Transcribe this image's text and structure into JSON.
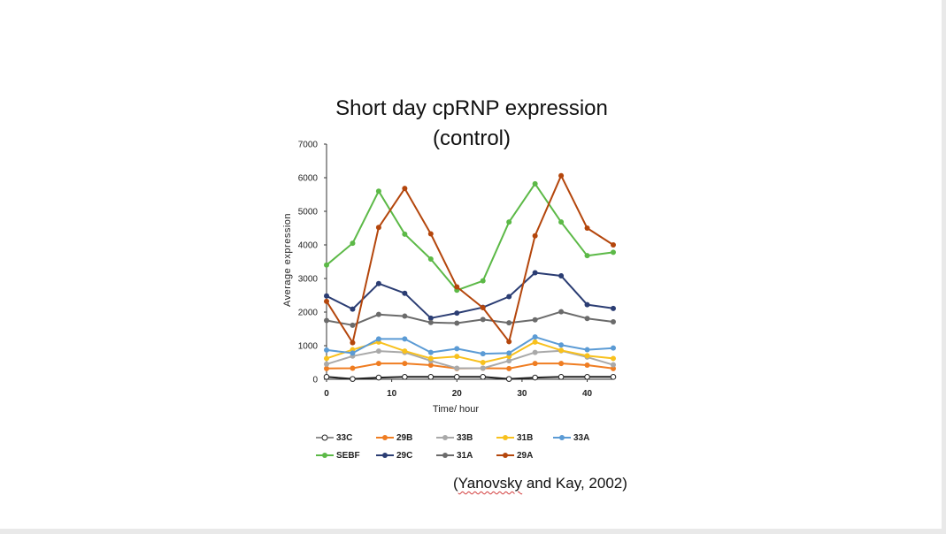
{
  "chart_data": {
    "type": "line",
    "title_line1": "Short day cpRNP expression",
    "title_line2": "(control)",
    "xlabel": "Time/ hour",
    "ylabel": "Average  expression",
    "xlim": [
      0,
      44
    ],
    "ylim": [
      0,
      7000
    ],
    "x_ticks": [
      "0",
      "10",
      "20",
      "30",
      "40"
    ],
    "y_ticks": [
      "0",
      "1000",
      "2000",
      "3000",
      "4000",
      "5000",
      "6000",
      "7000"
    ],
    "x": [
      0,
      4,
      8,
      12,
      16,
      20,
      24,
      28,
      32,
      36,
      40,
      44
    ],
    "series": [
      {
        "name": "33C",
        "color": "#222222",
        "marker": "open",
        "values": [
          70,
          10,
          50,
          70,
          70,
          70,
          70,
          10,
          50,
          70,
          70,
          70
        ]
      },
      {
        "name": "29B",
        "color": "#ef7d22",
        "marker": "filled",
        "values": [
          320,
          330,
          470,
          470,
          420,
          320,
          330,
          320,
          470,
          470,
          420,
          320
        ]
      },
      {
        "name": "33B",
        "color": "#a9a9a9",
        "marker": "filled",
        "values": [
          450,
          690,
          840,
          800,
          550,
          330,
          330,
          550,
          800,
          850,
          660,
          430
        ]
      },
      {
        "name": "31B",
        "color": "#f8c11e",
        "marker": "filled",
        "values": [
          620,
          880,
          1110,
          840,
          620,
          680,
          500,
          680,
          1110,
          860,
          700,
          620
        ]
      },
      {
        "name": "33A",
        "color": "#5b9bd5",
        "marker": "filled",
        "values": [
          870,
          780,
          1200,
          1200,
          800,
          910,
          760,
          780,
          1260,
          1020,
          880,
          930
        ]
      },
      {
        "name": "SEBF",
        "color": "#5cb947",
        "marker": "filled",
        "values": [
          3400,
          4050,
          5600,
          4320,
          3580,
          2650,
          2930,
          4680,
          5820,
          4680,
          3680,
          3780
        ]
      },
      {
        "name": "29C",
        "color": "#2b3d73",
        "marker": "filled",
        "values": [
          2480,
          2090,
          2850,
          2560,
          1820,
          1970,
          2140,
          2460,
          3170,
          3080,
          2220,
          2110
        ]
      },
      {
        "name": "31A",
        "color": "#6b6b6b",
        "marker": "filled",
        "values": [
          1750,
          1610,
          1930,
          1880,
          1690,
          1670,
          1780,
          1680,
          1770,
          2010,
          1810,
          1710
        ]
      },
      {
        "name": "29A",
        "color": "#b4460c",
        "marker": "filled",
        "values": [
          2320,
          1090,
          4520,
          5680,
          4330,
          2750,
          2130,
          1120,
          4270,
          6060,
          4500,
          4000
        ]
      }
    ],
    "legend_placement": "bottom",
    "grid": false
  },
  "citation": {
    "prefix": "(",
    "underlined": "Yanovsky",
    "suffix": " and Kay, 2002)"
  }
}
